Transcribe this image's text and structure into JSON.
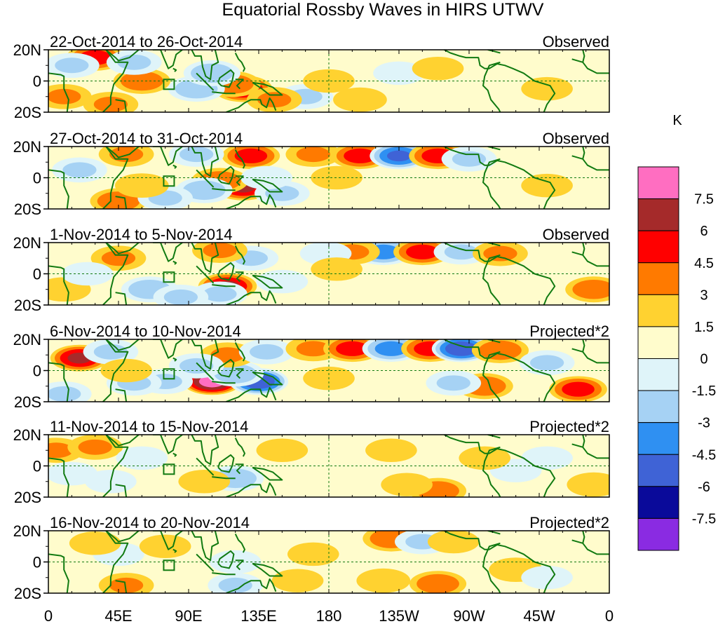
{
  "chart_data": {
    "type": "heatmap",
    "title": "Equatorial Rossby Waves in HIRS UTWV",
    "units": "K",
    "lat_ticks": [
      "20N",
      "0",
      "20S"
    ],
    "lon_ticks": [
      "0",
      "45E",
      "90E",
      "135E",
      "180",
      "135W",
      "90W",
      "45W",
      "0"
    ],
    "lat_range": [
      -20,
      20
    ],
    "lon_range": [
      0,
      360
    ],
    "colorbar": {
      "labels": [
        "7.5",
        "6",
        "4.5",
        "3",
        "1.5",
        "0",
        "-1.5",
        "-3",
        "-4.5",
        "-6",
        "-7.5"
      ],
      "colors": [
        "#ff6ec1",
        "#a52a2a",
        "#ff0000",
        "#ff7a00",
        "#ffd230",
        "#fffccc",
        "#dff4f9",
        "#a6d2f4",
        "#2f90f2",
        "#3f63d6",
        "#0a0a9a",
        "#8a2be2"
      ]
    },
    "panels": [
      {
        "date_range": "22-Oct-2014 to 26-Oct-2014",
        "label": "Observed",
        "blobs": [
          [
            30,
            15,
            5
          ],
          [
            60,
            0,
            4
          ],
          [
            125,
            -5,
            6
          ],
          [
            118,
            -2,
            4
          ],
          [
            95,
            -5,
            -4
          ],
          [
            105,
            5,
            -4
          ],
          [
            15,
            10,
            -3
          ],
          [
            55,
            12,
            -3
          ],
          [
            200,
            -12,
            2.5
          ],
          [
            165,
            -10,
            -3
          ],
          [
            225,
            5,
            -2
          ],
          [
            250,
            8,
            2
          ],
          [
            320,
            -5,
            2
          ],
          [
            180,
            0,
            2
          ],
          [
            40,
            -15,
            3
          ],
          [
            10,
            -10,
            3
          ],
          [
            145,
            -12,
            3
          ]
        ]
      },
      {
        "date_range": "27-Oct-2014 to 31-Oct-2014",
        "label": "Observed",
        "blobs": [
          [
            170,
            15,
            3
          ],
          [
            200,
            14,
            5
          ],
          [
            225,
            14,
            -6
          ],
          [
            250,
            14,
            5
          ],
          [
            270,
            12,
            -3
          ],
          [
            125,
            -6,
            6
          ],
          [
            110,
            -2,
            4
          ],
          [
            100,
            -8,
            -4
          ],
          [
            130,
            14,
            5
          ],
          [
            95,
            15,
            -3
          ],
          [
            45,
            -15,
            4
          ],
          [
            50,
            15,
            3
          ],
          [
            20,
            5,
            -3
          ],
          [
            75,
            -13,
            -3
          ],
          [
            60,
            -5,
            2.5
          ],
          [
            150,
            -10,
            -3
          ],
          [
            185,
            0,
            2
          ],
          [
            140,
            0,
            -2
          ],
          [
            320,
            -5,
            2
          ]
        ]
      },
      {
        "date_range": "1-Nov-2014 to 5-Nov-2014",
        "label": "Observed",
        "blobs": [
          [
            215,
            14,
            -5
          ],
          [
            240,
            14,
            5
          ],
          [
            265,
            14,
            -3
          ],
          [
            290,
            13,
            3
          ],
          [
            195,
            14,
            3
          ],
          [
            178,
            13,
            -2
          ],
          [
            115,
            -8,
            6
          ],
          [
            130,
            10,
            -3
          ],
          [
            110,
            15,
            3
          ],
          [
            110,
            -13,
            -3
          ],
          [
            65,
            -10,
            -4
          ],
          [
            85,
            -15,
            -3
          ],
          [
            45,
            10,
            3
          ],
          [
            10,
            -10,
            2.5
          ],
          [
            350,
            -10,
            4
          ],
          [
            185,
            3,
            2
          ],
          [
            150,
            -5,
            -2
          ],
          [
            25,
            0,
            -2
          ]
        ]
      },
      {
        "date_range": "6-Nov-2014 to 10-Nov-2014",
        "label": "Projected*2",
        "blobs": [
          [
            20,
            8,
            6
          ],
          [
            40,
            12,
            -3
          ],
          [
            105,
            -7,
            8
          ],
          [
            135,
            -7,
            -7
          ],
          [
            120,
            -2,
            -4
          ],
          [
            115,
            10,
            3
          ],
          [
            140,
            12,
            -3
          ],
          [
            95,
            3,
            -3
          ],
          [
            75,
            -7,
            -3
          ],
          [
            55,
            -8,
            -3
          ],
          [
            50,
            0,
            2
          ],
          [
            170,
            14,
            3
          ],
          [
            195,
            14,
            5
          ],
          [
            220,
            14,
            -5
          ],
          [
            245,
            14,
            5
          ],
          [
            265,
            14,
            -7
          ],
          [
            290,
            13,
            4
          ],
          [
            280,
            -10,
            4
          ],
          [
            260,
            -8,
            -3
          ],
          [
            320,
            5,
            -3
          ],
          [
            340,
            -12,
            5
          ],
          [
            180,
            -5,
            2
          ],
          [
            10,
            -15,
            -3
          ]
        ]
      },
      {
        "date_range": "11-Nov-2014 to 15-Nov-2014",
        "label": "Projected*2",
        "blobs": [
          [
            5,
            10,
            3
          ],
          [
            30,
            12,
            3
          ],
          [
            15,
            -5,
            -2
          ],
          [
            40,
            -10,
            -2
          ],
          [
            120,
            -8,
            -4
          ],
          [
            100,
            -10,
            2
          ],
          [
            250,
            -16,
            4
          ],
          [
            230,
            -12,
            2
          ],
          [
            220,
            10,
            2
          ],
          [
            60,
            5,
            -2
          ],
          [
            150,
            10,
            2
          ],
          [
            300,
            -3,
            -2
          ],
          [
            320,
            5,
            -2
          ],
          [
            280,
            5,
            2
          ],
          [
            350,
            -12,
            2.5
          ]
        ]
      },
      {
        "date_range": "16-Nov-2014 to 20-Nov-2014",
        "label": "Projected*2",
        "blobs": [
          [
            220,
            15,
            4
          ],
          [
            240,
            13,
            -3
          ],
          [
            260,
            13,
            2
          ],
          [
            250,
            -14,
            4
          ],
          [
            215,
            -12,
            2.5
          ],
          [
            120,
            -15,
            -3
          ],
          [
            50,
            -15,
            3
          ],
          [
            45,
            5,
            -2
          ],
          [
            30,
            12,
            2
          ],
          [
            75,
            10,
            2
          ],
          [
            120,
            0,
            -2
          ],
          [
            170,
            5,
            2
          ],
          [
            160,
            -12,
            2
          ],
          [
            300,
            -5,
            2.5
          ],
          [
            320,
            -10,
            -2
          ]
        ]
      }
    ]
  }
}
